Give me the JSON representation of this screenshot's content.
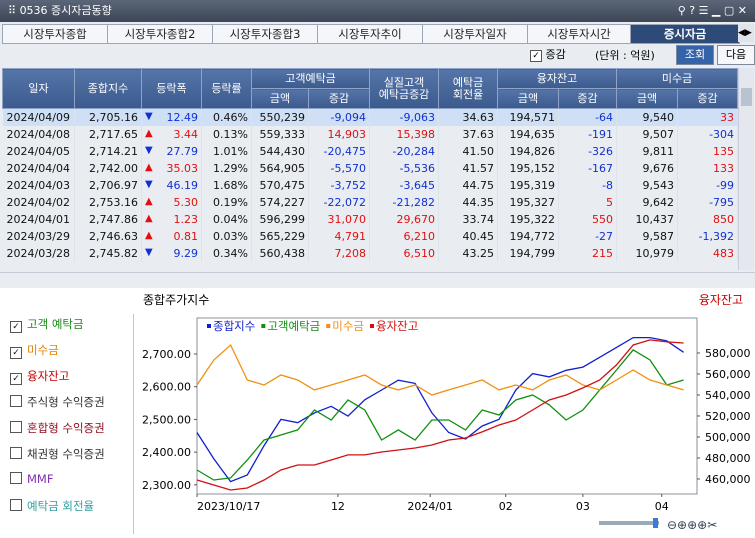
{
  "window": {
    "title": "0536 증시자금동향"
  },
  "tabs": [
    "시장투자종합",
    "시장투자종합2",
    "시장투자종합3",
    "시장투자추이",
    "시장투자일자",
    "시장투자시간",
    "증시자금"
  ],
  "active_tab": 6,
  "toolbar": {
    "checkbox": "증감",
    "unit": "(단위 : 억원)",
    "buttons": [
      "조회",
      "다음"
    ]
  },
  "table": {
    "groups": {
      "deposit": "고객예탁금",
      "real": [
        "실질고객",
        "예탁금증감"
      ],
      "turnover": [
        "예탁금",
        "회전율"
      ],
      "loan": "융자잔고",
      "unpaid": "미수금"
    },
    "headers": {
      "date": "일자",
      "index": "종합지수",
      "change": "등락폭",
      "rate": "등락률",
      "amount": "금액",
      "diff": "증감"
    },
    "rows": [
      [
        "2024/04/09",
        "2,705.16",
        "▼",
        "12.49",
        "0.46%",
        "550,239",
        "-9,094",
        "-9,063",
        "34.63",
        "194,571",
        "-64",
        "9,540",
        "33"
      ],
      [
        "2024/04/08",
        "2,717.65",
        "▲",
        "3.44",
        "0.13%",
        "559,333",
        "14,903",
        "15,398",
        "37.63",
        "194,635",
        "-191",
        "9,507",
        "-304"
      ],
      [
        "2024/04/05",
        "2,714.21",
        "▼",
        "27.79",
        "1.01%",
        "544,430",
        "-20,475",
        "-20,284",
        "41.50",
        "194,826",
        "-326",
        "9,811",
        "135"
      ],
      [
        "2024/04/04",
        "2,742.00",
        "▲",
        "35.03",
        "1.29%",
        "564,905",
        "-5,570",
        "-5,536",
        "41.57",
        "195,152",
        "-167",
        "9,676",
        "133"
      ],
      [
        "2024/04/03",
        "2,706.97",
        "▼",
        "46.19",
        "1.68%",
        "570,475",
        "-3,752",
        "-3,645",
        "44.75",
        "195,319",
        "-8",
        "9,543",
        "-99"
      ],
      [
        "2024/04/02",
        "2,753.16",
        "▲",
        "5.30",
        "0.19%",
        "574,227",
        "-22,072",
        "-21,282",
        "44.35",
        "195,327",
        "5",
        "9,642",
        "-795"
      ],
      [
        "2024/04/01",
        "2,747.86",
        "▲",
        "1.23",
        "0.04%",
        "596,299",
        "31,070",
        "29,670",
        "33.74",
        "195,322",
        "550",
        "10,437",
        "850"
      ],
      [
        "2024/03/29",
        "2,746.63",
        "▲",
        "0.81",
        "0.03%",
        "565,229",
        "4,791",
        "6,210",
        "40.45",
        "194,772",
        "-27",
        "9,587",
        "-1,392"
      ],
      [
        "2024/03/28",
        "2,745.82",
        "▼",
        "9.29",
        "0.34%",
        "560,438",
        "7,208",
        "6,510",
        "43.25",
        "194,799",
        "215",
        "10,979",
        "483"
      ]
    ]
  },
  "checkboxes": [
    {
      "label": "고객 예탁금",
      "checked": true,
      "color": "#1a8a1a"
    },
    {
      "label": "미수금",
      "checked": true,
      "color": "#e08000"
    },
    {
      "label": "융자잔고",
      "checked": true,
      "color": "#c00000"
    },
    {
      "label": "주식형 수익증권",
      "checked": false,
      "color": "#333333"
    },
    {
      "label": "혼합형 수익증권",
      "checked": false,
      "color": "#901020"
    },
    {
      "label": "채권형 수익증권",
      "checked": false,
      "color": "#333333"
    },
    {
      "label": "MMF",
      "checked": false,
      "color": "#8030b0"
    },
    {
      "label": "예탁금 회전율",
      "checked": false,
      "color": "#30a0a0"
    }
  ],
  "chart_data": {
    "type": "line",
    "title": "종합주가지수",
    "right_label": "융자잔고",
    "x": [
      0,
      1,
      2,
      3,
      4,
      5,
      6,
      7,
      8,
      9,
      10,
      11,
      12,
      13,
      14,
      15,
      16,
      17,
      18,
      19,
      20,
      21,
      22,
      23,
      24,
      25,
      26,
      27,
      28,
      29
    ],
    "xlim": [
      0,
      29.8
    ],
    "xticks": [
      {
        "value": 0,
        "label": "2023/10/17"
      },
      {
        "value": 8.4,
        "label": "12"
      },
      {
        "value": 13.9,
        "label": "2024/01"
      },
      {
        "value": 18.4,
        "label": "02"
      },
      {
        "value": 23,
        "label": "03"
      },
      {
        "value": 27.7,
        "label": "04"
      }
    ],
    "ylim": [
      2272,
      2810
    ],
    "yticks": [
      {
        "value": 2300,
        "label": "2,300.00"
      },
      {
        "value": 2400,
        "label": "2,400.00"
      },
      {
        "value": 2500,
        "label": "2,500.00"
      },
      {
        "value": 2600,
        "label": "2,600.00"
      },
      {
        "value": 2700,
        "label": "2,700.00"
      }
    ],
    "y2lim": [
      445700,
      613300
    ],
    "y2ticks": [
      {
        "value": 460000,
        "label": "460,000"
      },
      {
        "value": 480000,
        "label": "480,000"
      },
      {
        "value": 500000,
        "label": "500,000"
      },
      {
        "value": 520000,
        "label": "520,000"
      },
      {
        "value": 540000,
        "label": "540,000"
      },
      {
        "value": 560000,
        "label": "560,000"
      },
      {
        "value": 580000,
        "label": "580,000"
      }
    ],
    "series": [
      {
        "name": "종합지수",
        "color": "#1020d0",
        "values": [
          2460,
          2380,
          2310,
          2330,
          2420,
          2500,
          2490,
          2520,
          2540,
          2510,
          2560,
          2590,
          2620,
          2610,
          2520,
          2460,
          2440,
          2480,
          2500,
          2590,
          2640,
          2630,
          2650,
          2660,
          2690,
          2720,
          2750,
          2750,
          2740,
          2705
        ]
      },
      {
        "name": "고객예탁금",
        "color": "#109010",
        "axis": "y2",
        "values": [
          468600,
          459000,
          461000,
          478100,
          497100,
          501900,
          506700,
          525700,
          516200,
          535200,
          525700,
          497100,
          506700,
          497100,
          516200,
          516200,
          506700,
          525700,
          520900,
          535200,
          540000,
          530500,
          516200,
          525700,
          544800,
          563800,
          582900,
          573300,
          549500,
          554300
        ]
      },
      {
        "name": "미수금",
        "color": "#f09010",
        "axis": "y2",
        "values": [
          549500,
          573300,
          587600,
          554300,
          549500,
          559000,
          554300,
          544800,
          549500,
          554300,
          559000,
          549500,
          544800,
          549500,
          540000,
          544800,
          549500,
          554300,
          544800,
          549500,
          544800,
          554300,
          559000,
          549500,
          544800,
          554300,
          563800,
          554300,
          549500,
          544800
        ]
      },
      {
        "name": "융자잔고",
        "color": "#d01010",
        "axis": "y2",
        "values": [
          459000,
          454300,
          449500,
          451400,
          459000,
          468600,
          473300,
          473300,
          478100,
          482900,
          482900,
          485700,
          487600,
          489500,
          492400,
          497100,
          499000,
          504800,
          511400,
          516200,
          525700,
          535200,
          540000,
          546700,
          554300,
          568600,
          587600,
          592400,
          590500,
          589500
        ]
      }
    ]
  }
}
